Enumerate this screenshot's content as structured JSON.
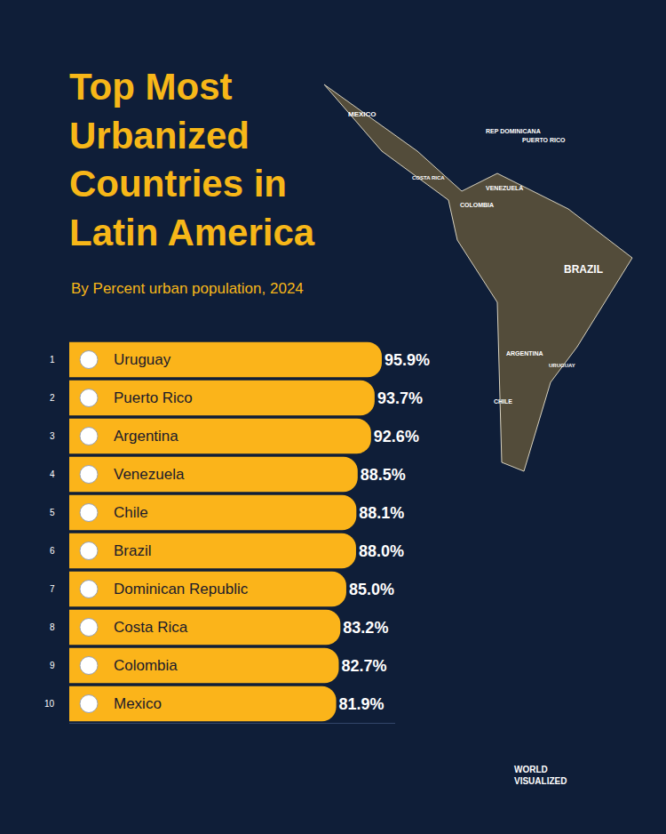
{
  "chart_data": {
    "type": "bar",
    "orientation": "horizontal",
    "title": "Top Most Urbanized Countries in Latin America",
    "subtitle": "By Percent urban population, 2024",
    "ranks": [
      1,
      2,
      3,
      4,
      5,
      6,
      7,
      8,
      9,
      10
    ],
    "categories": [
      "Uruguay",
      "Puerto Rico",
      "Argentina",
      "Venezuela",
      "Chile",
      "Brazil",
      "Dominican Republic",
      "Costa Rica",
      "Colombia",
      "Mexico"
    ],
    "values": [
      95.9,
      93.7,
      92.6,
      88.5,
      88.1,
      88.0,
      85.0,
      83.2,
      82.7,
      81.9
    ],
    "value_labels": [
      "95.9%",
      "93.7%",
      "92.6%",
      "88.5%",
      "88.1%",
      "88.0%",
      "85.0%",
      "83.2%",
      "82.7%",
      "81.9%"
    ],
    "color": "#fbb41a",
    "xlim": [
      0,
      100
    ],
    "grid": false,
    "data_labels": true,
    "tick_labels": false,
    "map_labels": [
      "MEXICO",
      "REP DOMINICANA",
      "PUERTO RICO",
      "COSTA RICA",
      "VENEZUELA",
      "COLOMBIA",
      "BRAZIL",
      "ARGENTINA",
      "URUGUAY",
      "CHILE"
    ],
    "brand": "WORLD VISUALIZED"
  }
}
